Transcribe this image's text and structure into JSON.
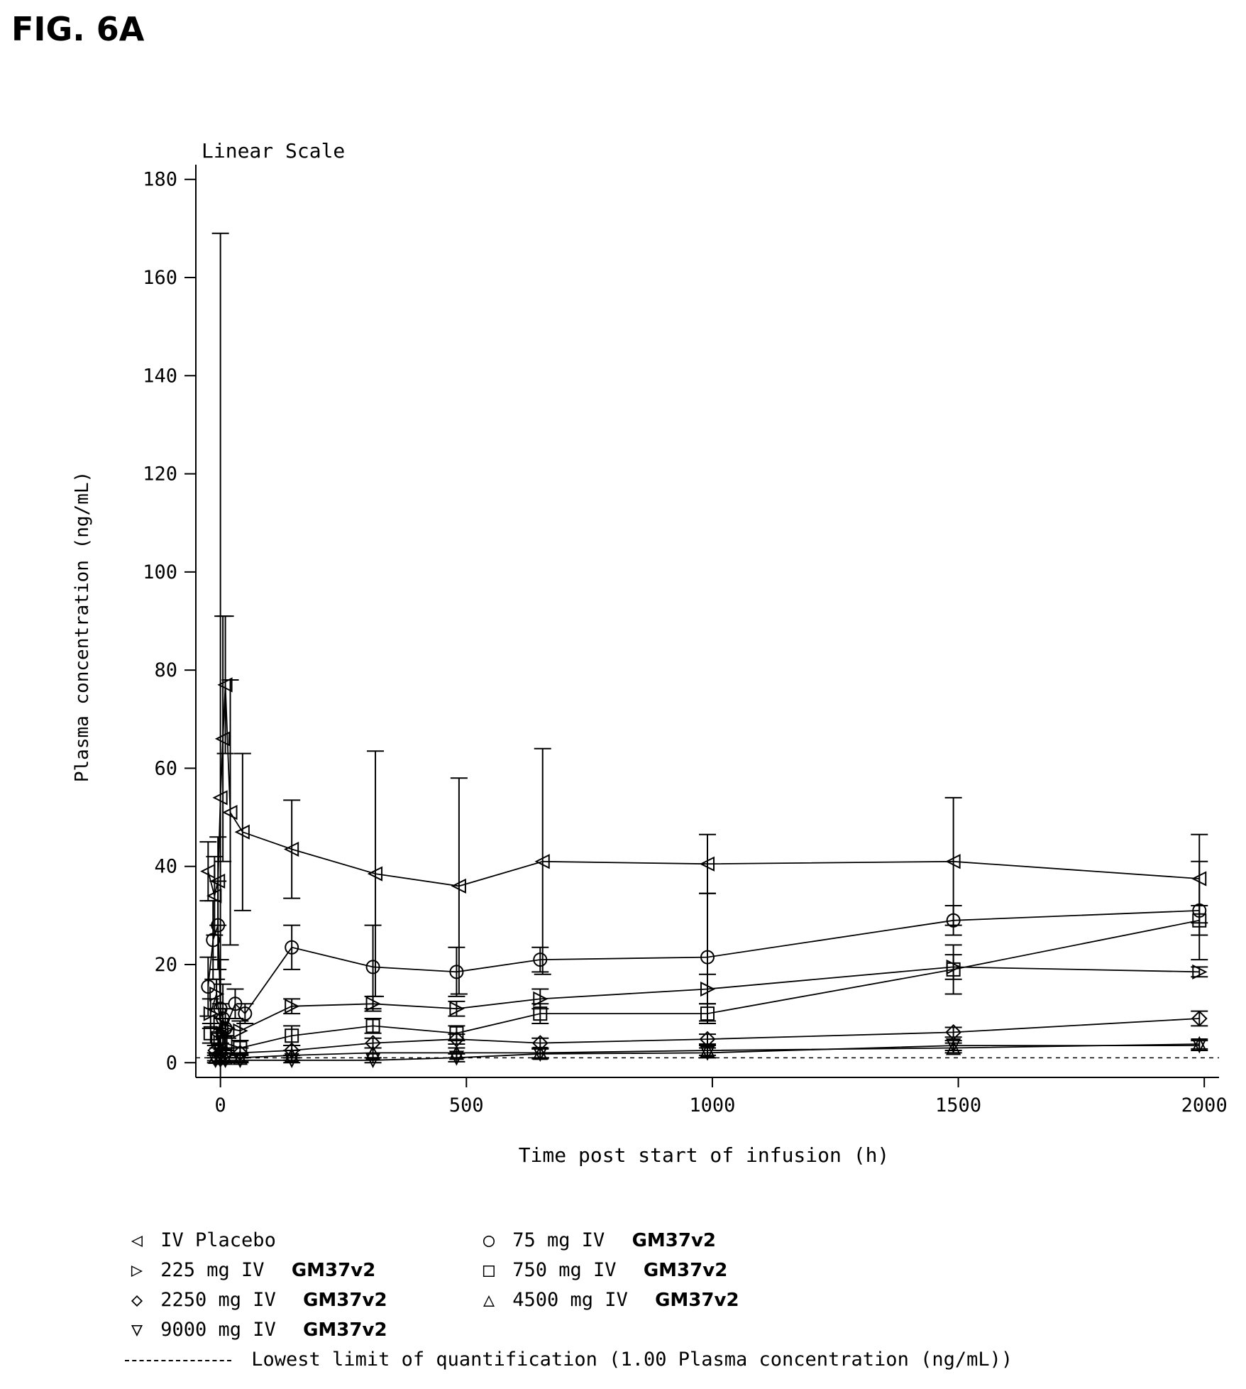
{
  "figure_label": "FIG. 6A",
  "chart_data": {
    "type": "line",
    "title": "Linear Scale",
    "xlabel": "Time post start of infusion (h)",
    "ylabel": "Plasma concentration (ng/mL)",
    "xlim": [
      -50,
      2030
    ],
    "ylim": [
      -3,
      183
    ],
    "xticks": [
      "0",
      "500",
      "1000",
      "1500",
      "2000"
    ],
    "xtick_values": [
      0,
      500,
      1000,
      1500,
      2000
    ],
    "yticks": [
      "0",
      "20",
      "40",
      "60",
      "80",
      "100",
      "120",
      "140",
      "160",
      "180"
    ],
    "ytick_values": [
      0,
      20,
      40,
      60,
      80,
      100,
      120,
      140,
      160,
      180
    ],
    "lloq": {
      "value": 1.0,
      "label": "Lowest limit of quantification (1.00 Plasma concentration (ng/mL))"
    },
    "series": [
      {
        "name": "IV Placebo",
        "marker": "triangle-left",
        "x": [
          -25,
          -12,
          -5,
          0,
          5,
          10,
          20,
          45,
          145,
          315,
          485,
          655,
          990,
          1490,
          1990
        ],
        "y": [
          39,
          34,
          37,
          54,
          66,
          77,
          51,
          47,
          43.5,
          38.5,
          36,
          41,
          40.5,
          41,
          37.5
        ],
        "err": [
          6,
          8,
          9,
          115,
          25,
          14,
          27,
          16,
          10,
          25,
          22,
          23,
          6,
          13,
          9
        ]
      },
      {
        "name": "75 mg IV GM37v2",
        "marker": "circle",
        "x": [
          -25,
          -15,
          -5,
          0,
          5,
          10,
          30,
          50,
          145,
          310,
          480,
          650,
          990,
          1490,
          1990
        ],
        "y": [
          15.5,
          25,
          28,
          11,
          9,
          7,
          12,
          10,
          23.5,
          19.5,
          18.5,
          21,
          21.5,
          29,
          31
        ],
        "err": [
          6,
          8,
          9,
          10,
          7,
          4,
          3,
          2,
          4.5,
          8.5,
          5,
          2.5,
          13,
          3,
          10
        ]
      },
      {
        "name": "225 mg IV GM37v2",
        "marker": "triangle-right",
        "x": [
          -20,
          -8,
          0,
          5,
          15,
          40,
          145,
          310,
          480,
          650,
          990,
          1490,
          1990
        ],
        "y": [
          10,
          14,
          8,
          6,
          7,
          6.5,
          11.5,
          12,
          11,
          13,
          15,
          19.5,
          18.5
        ],
        "err": [
          3,
          3,
          4,
          3,
          2,
          2,
          1.5,
          1.5,
          1.5,
          2,
          3,
          2.5,
          1
        ]
      },
      {
        "name": "750 mg IV GM37v2",
        "marker": "square",
        "x": [
          -20,
          -5,
          0,
          10,
          40,
          145,
          310,
          480,
          650,
          990,
          1490,
          1990
        ],
        "y": [
          6,
          5,
          4,
          4,
          3,
          5.5,
          7.5,
          6,
          10,
          10,
          19,
          29
        ],
        "err": [
          2,
          2,
          2,
          1.5,
          1.5,
          2,
          1.5,
          1.5,
          2,
          2,
          5,
          3
        ]
      },
      {
        "name": "2250 mg IV GM37v2",
        "marker": "diamond",
        "x": [
          -10,
          0,
          10,
          40,
          145,
          310,
          480,
          650,
          990,
          1490,
          1990
        ],
        "y": [
          2.5,
          2,
          2,
          2,
          2.5,
          4,
          4.8,
          4,
          4.8,
          6.2,
          9
        ],
        "err": [
          1,
          1,
          1,
          1,
          1,
          1,
          1,
          1,
          1,
          1,
          1.5
        ]
      },
      {
        "name": "4500 mg IV GM37v2",
        "marker": "triangle-up",
        "x": [
          -10,
          0,
          10,
          40,
          145,
          310,
          480,
          650,
          990,
          1490,
          1990
        ],
        "y": [
          1.2,
          1,
          1,
          1,
          1.5,
          2,
          2,
          2,
          2.5,
          3,
          3.8
        ],
        "err": [
          0.8,
          0.8,
          0.8,
          0.8,
          1,
          1,
          1,
          1,
          1,
          1,
          1
        ]
      },
      {
        "name": "9000 mg IV GM37v2",
        "marker": "triangle-down",
        "x": [
          -10,
          0,
          10,
          40,
          145,
          310,
          480,
          650,
          990,
          1490,
          1990
        ],
        "y": [
          0.5,
          0.5,
          0.5,
          0.5,
          0.5,
          0.5,
          1,
          1.8,
          2,
          3.5,
          3.5
        ],
        "err": [
          0.5,
          0.5,
          0.5,
          0.5,
          0.5,
          0.5,
          0.8,
          1,
          1,
          1,
          1
        ]
      }
    ]
  },
  "legend": {
    "placebo": {
      "label": "IV Placebo"
    },
    "d75": {
      "label": "75 mg IV",
      "tag": "GM37v2"
    },
    "d225": {
      "label": "225 mg IV",
      "tag": "GM37v2"
    },
    "d750": {
      "label": "750 mg IV",
      "tag": "GM37v2"
    },
    "d2250": {
      "label": "2250 mg IV",
      "tag": "GM37v2"
    },
    "d4500": {
      "label": "4500 mg IV",
      "tag": "GM37v2"
    },
    "d9000": {
      "label": "9000 mg IV",
      "tag": "GM37v2"
    },
    "lloq_label": "Lowest limit of quantification (1.00 Plasma concentration (ng/mL))"
  }
}
